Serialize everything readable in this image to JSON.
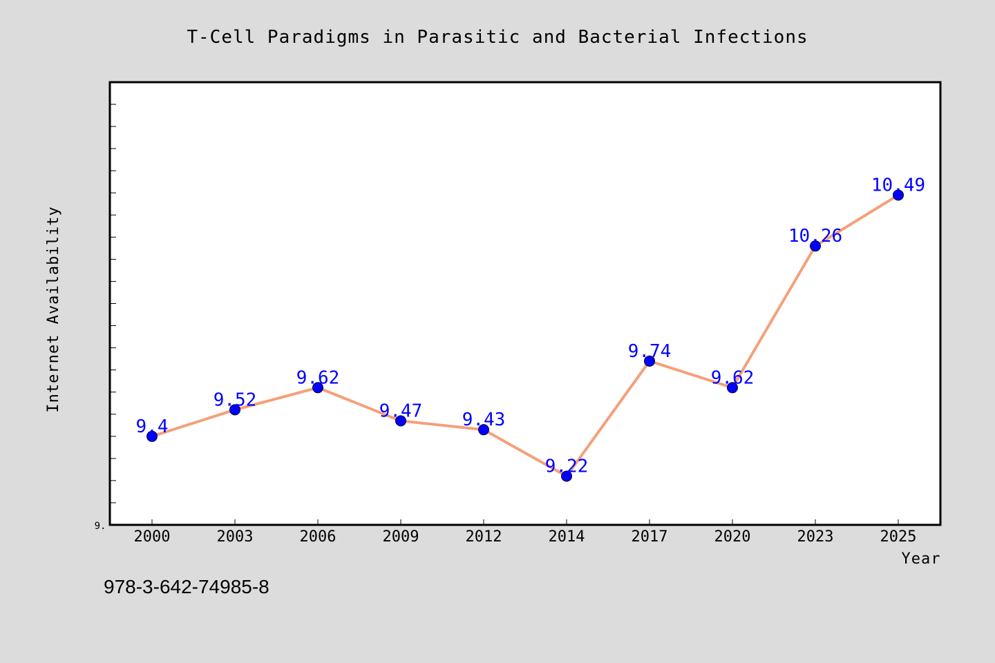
{
  "chart_data": {
    "type": "line",
    "title": "T-Cell Paradigms in Parasitic and Bacterial Infections",
    "xlabel": "Year",
    "ylabel": "Internet Availability",
    "categories": [
      "2000",
      "2003",
      "2006",
      "2009",
      "2012",
      "2014",
      "2017",
      "2020",
      "2023",
      "2025"
    ],
    "series": [
      {
        "values": [
          9.4,
          9.52,
          9.62,
          9.47,
          9.43,
          9.22,
          9.74,
          9.62,
          10.26,
          10.49
        ],
        "labels": [
          "9.4",
          "9.52",
          "9.62",
          "9.47",
          "9.43",
          "9.22",
          "9.74",
          "9.62",
          "10.26",
          "10.49"
        ],
        "line_color": "#f4a07a",
        "marker_color": "#0000ff"
      }
    ],
    "ylim": [
      9.0,
      11.0
    ],
    "y_tick_label": "9.",
    "grid": false,
    "legend": "none"
  },
  "annotation": "978-3-642-74985-8",
  "colors": {
    "background": "#dcdcdc",
    "plot_background": "#ffffff",
    "line": "#f4a07a",
    "marker": "#0000ff",
    "data_label": "#0000ff"
  }
}
